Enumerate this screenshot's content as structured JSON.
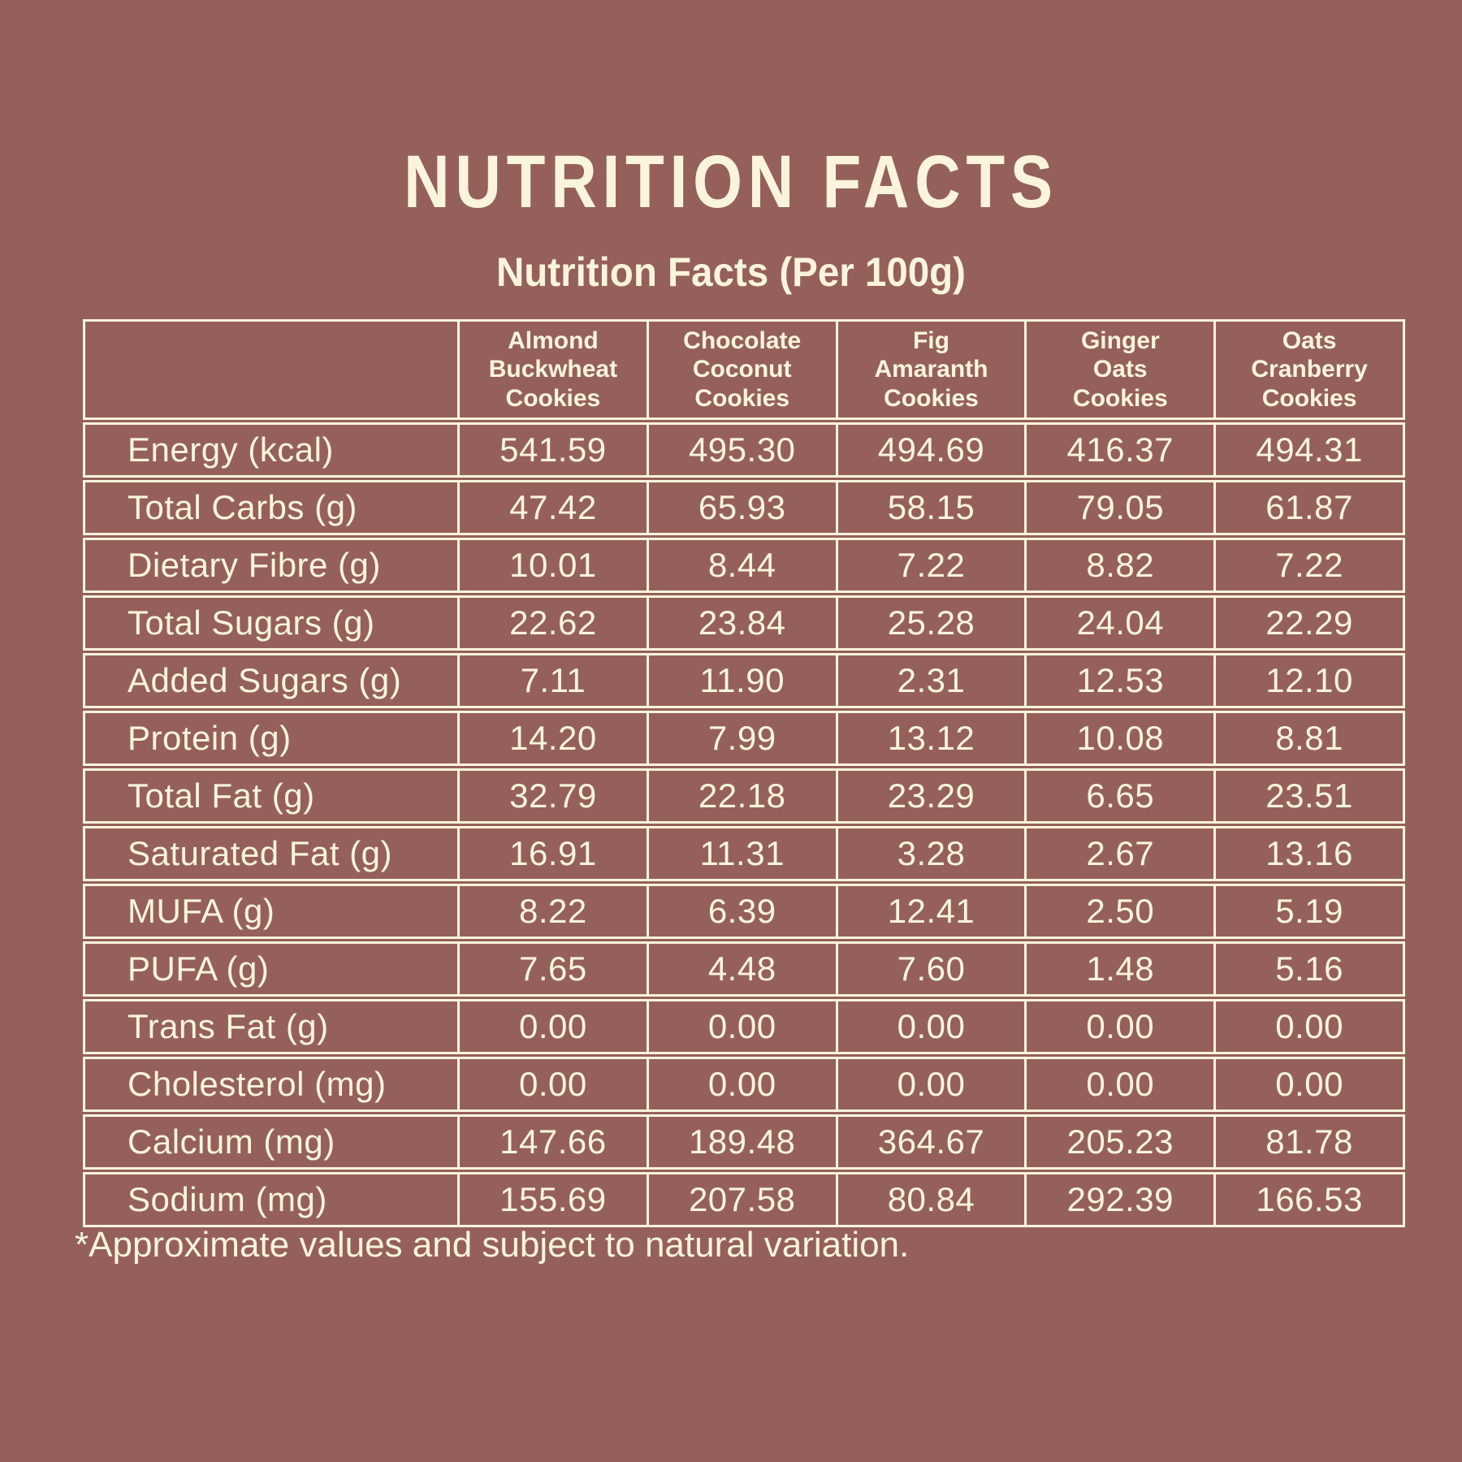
{
  "page": {
    "title": "NUTRITION FACTS",
    "footnote": "*Approximate values and subject to natural variation.",
    "colors": {
      "background": "#95605C",
      "foreground": "#FAF4DC"
    }
  },
  "chart_data": {
    "type": "table",
    "title": "Nutrition Facts (Per 100g)",
    "columns": [
      "Almond\nBuckwheat\nCookies",
      "Chocolate\nCoconut\nCookies",
      "Fig\nAmaranth\nCookies",
      "Ginger\nOats\nCookies",
      "Oats\nCranberry\nCookies"
    ],
    "rows": [
      {
        "label": "Energy (kcal)",
        "values": [
          "541.59",
          "495.30",
          "494.69",
          "416.37",
          "494.31"
        ]
      },
      {
        "label": "Total Carbs (g)",
        "values": [
          "47.42",
          "65.93",
          "58.15",
          "79.05",
          "61.87"
        ]
      },
      {
        "label": "Dietary Fibre (g)",
        "values": [
          "10.01",
          "8.44",
          "7.22",
          "8.82",
          "7.22"
        ]
      },
      {
        "label": "Total Sugars (g)",
        "values": [
          "22.62",
          "23.84",
          "25.28",
          "24.04",
          "22.29"
        ]
      },
      {
        "label": "Added Sugars (g)",
        "values": [
          "7.11",
          "11.90",
          "2.31",
          "12.53",
          "12.10"
        ]
      },
      {
        "label": "Protein (g)",
        "values": [
          "14.20",
          "7.99",
          "13.12",
          "10.08",
          "8.81"
        ]
      },
      {
        "label": "Total Fat (g)",
        "values": [
          "32.79",
          "22.18",
          "23.29",
          "6.65",
          "23.51"
        ]
      },
      {
        "label": "Saturated Fat (g)",
        "values": [
          "16.91",
          "11.31",
          "3.28",
          "2.67",
          "13.16"
        ]
      },
      {
        "label": "MUFA (g)",
        "values": [
          "8.22",
          "6.39",
          "12.41",
          "2.50",
          "5.19"
        ]
      },
      {
        "label": "PUFA (g)",
        "values": [
          "7.65",
          "4.48",
          "7.60",
          "1.48",
          "5.16"
        ]
      },
      {
        "label": "Trans Fat (g)",
        "values": [
          "0.00",
          "0.00",
          "0.00",
          "0.00",
          "0.00"
        ]
      },
      {
        "label": "Cholesterol (mg)",
        "values": [
          "0.00",
          "0.00",
          "0.00",
          "0.00",
          "0.00"
        ]
      },
      {
        "label": "Calcium (mg)",
        "values": [
          "147.66",
          "189.48",
          "364.67",
          "205.23",
          "81.78"
        ]
      },
      {
        "label": "Sodium (mg)",
        "values": [
          "155.69",
          "207.58",
          "80.84",
          "292.39",
          "166.53"
        ]
      }
    ]
  }
}
